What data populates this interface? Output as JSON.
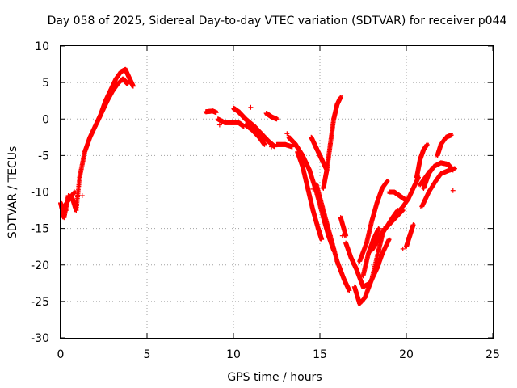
{
  "chart_data": {
    "type": "scatter",
    "title": "Day 058 of 2025, Sidereal Day-to-day VTEC variation (SDTVAR) for receiver p044",
    "xlabel": "GPS time / hours",
    "ylabel": "SDTVAR / TECUs",
    "xlim": [
      0,
      25
    ],
    "ylim": [
      -30,
      10
    ],
    "xticks": [
      "0",
      "5",
      "10",
      "15",
      "20",
      "25"
    ],
    "yticks": [
      "10",
      "5",
      "0",
      "-5",
      "-10",
      "-15",
      "-20",
      "-25",
      "-30"
    ],
    "grid": true,
    "marker": "plus",
    "marker_color": "#ff0000",
    "series": [
      {
        "segments": [
          [
            [
              0.0,
              -11.5
            ],
            [
              0.2,
              -13.5
            ],
            [
              0.45,
              -10.5
            ],
            [
              0.7,
              -11.0
            ],
            [
              0.9,
              -12.5
            ],
            [
              1.1,
              -8.0
            ],
            [
              1.4,
              -4.5
            ],
            [
              1.7,
              -2.5
            ],
            [
              2.0,
              -1.0
            ],
            [
              2.3,
              0.5
            ],
            [
              2.6,
              2.5
            ],
            [
              2.9,
              4.0
            ],
            [
              3.2,
              5.5
            ],
            [
              3.5,
              6.5
            ],
            [
              3.75,
              6.8
            ],
            [
              4.0,
              5.5
            ],
            [
              4.2,
              4.5
            ]
          ],
          [
            [
              0.2,
              -12.0
            ],
            [
              0.5,
              -11.0
            ],
            [
              0.8,
              -10.0
            ]
          ],
          [
            [
              2.1,
              -0.5
            ],
            [
              2.4,
              1.0
            ],
            [
              2.7,
              2.5
            ],
            [
              3.0,
              3.8
            ],
            [
              3.3,
              4.8
            ],
            [
              3.6,
              5.5
            ],
            [
              3.9,
              4.8
            ]
          ],
          [
            [
              8.4,
              1.0
            ],
            [
              8.8,
              1.1
            ],
            [
              9.0,
              0.9
            ]
          ],
          [
            [
              9.1,
              0.0
            ],
            [
              9.5,
              -0.5
            ],
            [
              9.9,
              -0.5
            ],
            [
              10.3,
              -0.5
            ],
            [
              10.6,
              -1.0
            ]
          ],
          [
            [
              10.0,
              1.5
            ],
            [
              10.3,
              1.0
            ],
            [
              10.7,
              0.0
            ],
            [
              11.2,
              -1.0
            ],
            [
              11.6,
              -2.0
            ],
            [
              12.0,
              -3.0
            ],
            [
              12.4,
              -3.8
            ]
          ],
          [
            [
              10.7,
              -0.8
            ],
            [
              11.1,
              -1.5
            ],
            [
              11.5,
              -2.5
            ],
            [
              11.8,
              -3.5
            ]
          ],
          [
            [
              11.9,
              0.8
            ],
            [
              12.2,
              0.3
            ],
            [
              12.5,
              0.0
            ]
          ],
          [
            [
              12.5,
              -3.5
            ],
            [
              13.0,
              -3.5
            ],
            [
              13.4,
              -3.8
            ]
          ],
          [
            [
              13.2,
              -2.5
            ],
            [
              13.6,
              -3.5
            ],
            [
              14.0,
              -5.0
            ],
            [
              14.4,
              -7.0
            ],
            [
              14.8,
              -10.0
            ],
            [
              15.2,
              -13.5
            ],
            [
              15.5,
              -16.0
            ],
            [
              15.8,
              -18.0
            ]
          ],
          [
            [
              13.7,
              -4.5
            ],
            [
              14.0,
              -6.5
            ],
            [
              14.3,
              -9.5
            ],
            [
              14.6,
              -12.5
            ],
            [
              14.9,
              -15.0
            ],
            [
              15.1,
              -16.5
            ]
          ],
          [
            [
              14.5,
              -2.5
            ],
            [
              14.8,
              -4.0
            ],
            [
              15.1,
              -5.5
            ],
            [
              15.4,
              -7.0
            ]
          ],
          [
            [
              14.8,
              -9.0
            ],
            [
              15.2,
              -12.5
            ],
            [
              15.6,
              -16.0
            ],
            [
              16.0,
              -19.5
            ],
            [
              16.4,
              -22.0
            ],
            [
              16.7,
              -23.5
            ]
          ],
          [
            [
              15.2,
              -9.5
            ],
            [
              15.4,
              -7.0
            ],
            [
              15.6,
              -3.5
            ],
            [
              15.8,
              0.0
            ],
            [
              16.0,
              2.0
            ],
            [
              16.2,
              3.0
            ]
          ],
          [
            [
              16.2,
              -13.5
            ],
            [
              16.5,
              -16.0
            ]
          ],
          [
            [
              16.5,
              -17.0
            ],
            [
              16.8,
              -19.0
            ],
            [
              17.1,
              -20.5
            ]
          ],
          [
            [
              17.0,
              -23.0
            ],
            [
              17.3,
              -25.3
            ],
            [
              17.6,
              -24.5
            ],
            [
              18.0,
              -22.0
            ],
            [
              18.4,
              -18.0
            ],
            [
              18.7,
              -15.0
            ]
          ],
          [
            [
              17.1,
              -20.5
            ],
            [
              17.5,
              -23.0
            ],
            [
              17.9,
              -22.5
            ],
            [
              18.3,
              -20.5
            ],
            [
              18.6,
              -18.5
            ],
            [
              19.0,
              -16.5
            ]
          ],
          [
            [
              17.3,
              -19.5
            ],
            [
              17.7,
              -17.0
            ],
            [
              18.0,
              -14.0
            ],
            [
              18.3,
              -11.5
            ],
            [
              18.6,
              -9.5
            ],
            [
              18.9,
              -8.5
            ]
          ],
          [
            [
              17.5,
              -21.5
            ],
            [
              17.8,
              -18.5
            ],
            [
              18.1,
              -16.5
            ],
            [
              18.4,
              -15.0
            ]
          ],
          [
            [
              18.0,
              -18.0
            ],
            [
              18.4,
              -16.5
            ],
            [
              18.8,
              -15.0
            ],
            [
              19.2,
              -13.5
            ],
            [
              19.5,
              -12.5
            ]
          ],
          [
            [
              18.3,
              -16.5
            ],
            [
              18.6,
              -15.5
            ],
            [
              19.0,
              -14.5
            ],
            [
              19.4,
              -13.5
            ],
            [
              19.8,
              -12.5
            ]
          ],
          [
            [
              19.0,
              -14.5
            ],
            [
              19.4,
              -13.0
            ],
            [
              19.8,
              -12.0
            ],
            [
              20.1,
              -11.0
            ],
            [
              20.4,
              -9.5
            ],
            [
              20.7,
              -8.0
            ]
          ],
          [
            [
              19.0,
              -10.0
            ],
            [
              19.3,
              -10.0
            ],
            [
              19.6,
              -10.5
            ],
            [
              19.9,
              -11.0
            ]
          ],
          [
            [
              20.0,
              -17.5
            ],
            [
              20.2,
              -16.0
            ],
            [
              20.4,
              -14.5
            ]
          ],
          [
            [
              20.6,
              -8.0
            ],
            [
              20.8,
              -5.5
            ],
            [
              21.0,
              -4.2
            ],
            [
              21.2,
              -3.5
            ]
          ],
          [
            [
              20.9,
              -12.0
            ],
            [
              21.3,
              -10.0
            ],
            [
              21.7,
              -8.5
            ],
            [
              22.0,
              -7.5
            ],
            [
              22.5,
              -7.0
            ],
            [
              22.8,
              -6.8
            ]
          ],
          [
            [
              21.0,
              -9.5
            ],
            [
              21.3,
              -7.5
            ],
            [
              21.6,
              -6.5
            ],
            [
              22.0,
              -6.0
            ],
            [
              22.4,
              -6.2
            ],
            [
              22.7,
              -7.0
            ]
          ],
          [
            [
              21.8,
              -5.0
            ],
            [
              22.0,
              -3.5
            ],
            [
              22.3,
              -2.5
            ],
            [
              22.6,
              -2.2
            ]
          ],
          [
            [
              20.8,
              -9.0
            ],
            [
              21.1,
              -8.0
            ],
            [
              21.4,
              -7.0
            ]
          ]
        ],
        "points": [
          [
            1.25,
            -10.5
          ],
          [
            11.0,
            1.6
          ],
          [
            9.2,
            -0.8
          ],
          [
            12.2,
            -3.8
          ],
          [
            22.7,
            -9.8
          ],
          [
            0.35,
            -12.5
          ],
          [
            13.1,
            -2.0
          ],
          [
            16.3,
            -16.0
          ],
          [
            14.6,
            -9.6
          ],
          [
            19.8,
            -17.8
          ]
        ]
      }
    ]
  }
}
